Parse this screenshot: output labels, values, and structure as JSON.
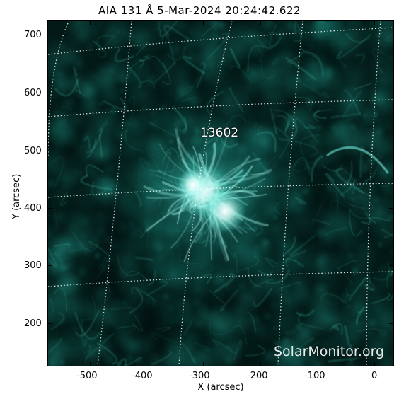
{
  "image": {
    "title": "AIA 131 Å  5-Mar-2024 20:24:42.622",
    "instrument": "AIA",
    "wavelength": "131 Å",
    "date": "5-Mar-2024",
    "time": "20:24:42.622",
    "region_label": "13602",
    "watermark": "SolarMonitor.org",
    "colormap_hex": "#00e6d2"
  },
  "axes": {
    "xlabel": "X (arcsec)",
    "ylabel": "Y (arcsec)",
    "x_ticks": [
      "-500",
      "-400",
      "-300",
      "-200",
      "-100",
      "0"
    ],
    "y_ticks": [
      "700",
      "600",
      "500",
      "400",
      "300",
      "200"
    ],
    "xlim": [
      -570,
      35
    ],
    "ylim": [
      125,
      725
    ]
  }
}
